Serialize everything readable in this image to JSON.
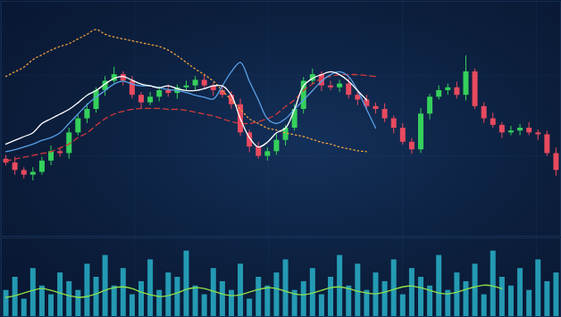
{
  "chart_data": [
    {
      "type": "candlestick",
      "x": [
        0,
        1,
        2,
        3,
        4,
        5,
        6,
        7,
        8,
        9,
        10,
        11,
        12,
        13,
        14,
        15,
        16,
        17,
        18,
        19,
        20,
        21,
        22,
        23,
        24,
        25,
        26,
        27,
        28,
        29,
        30,
        31,
        32,
        33,
        34,
        35,
        36,
        37,
        38,
        39,
        40,
        41,
        42,
        43,
        44,
        45,
        46,
        47,
        48,
        49,
        50,
        51,
        52,
        53,
        54,
        55,
        56,
        57,
        58,
        59,
        60,
        61
      ],
      "open": [
        172,
        168,
        160,
        155,
        158,
        170,
        180,
        178,
        200,
        215,
        225,
        245,
        255,
        262,
        255,
        240,
        232,
        238,
        245,
        242,
        248,
        250,
        256,
        250,
        245,
        240,
        230,
        200,
        185,
        175,
        180,
        192,
        205,
        225,
        255,
        262,
        250,
        248,
        252,
        240,
        235,
        228,
        225,
        215,
        205,
        190,
        182,
        220,
        238,
        245,
        248,
        240,
        265,
        228,
        215,
        208,
        200,
        202,
        205,
        200,
        198,
        178
      ],
      "high": [
        176,
        174,
        163,
        163,
        174,
        186,
        183,
        205,
        219,
        231,
        248,
        260,
        270,
        265,
        260,
        243,
        243,
        249,
        251,
        251,
        255,
        260,
        262,
        253,
        250,
        244,
        236,
        203,
        190,
        184,
        198,
        208,
        230,
        259,
        268,
        265,
        255,
        256,
        258,
        243,
        240,
        232,
        231,
        218,
        210,
        194,
        226,
        241,
        250,
        252,
        254,
        282,
        268,
        232,
        221,
        211,
        207,
        209,
        211,
        203,
        202,
        184
      ],
      "low": [
        165,
        155,
        151,
        149,
        155,
        165,
        174,
        172,
        197,
        210,
        221,
        239,
        252,
        250,
        236,
        226,
        229,
        233,
        238,
        236,
        245,
        245,
        246,
        239,
        237,
        225,
        196,
        179,
        172,
        170,
        176,
        186,
        202,
        220,
        251,
        244,
        245,
        243,
        236,
        229,
        225,
        220,
        211,
        199,
        187,
        177,
        178,
        214,
        235,
        240,
        236,
        234,
        225,
        210,
        205,
        194,
        197,
        197,
        197,
        192,
        175,
        154
      ],
      "close": [
        168,
        160,
        155,
        158,
        170,
        180,
        178,
        200,
        215,
        225,
        245,
        255,
        262,
        255,
        240,
        232,
        238,
        245,
        242,
        248,
        250,
        256,
        250,
        245,
        240,
        230,
        200,
        185,
        175,
        180,
        192,
        205,
        225,
        255,
        262,
        250,
        248,
        252,
        240,
        235,
        228,
        225,
        215,
        205,
        190,
        182,
        220,
        238,
        245,
        248,
        240,
        265,
        228,
        215,
        208,
        200,
        202,
        205,
        200,
        198,
        178,
        160
      ],
      "colors": [
        "#e84a5f",
        "#e84a5f",
        "#e84a5f",
        "#35d05b",
        "#35d05b",
        "#35d05b",
        "#e84a5f",
        "#35d05b",
        "#35d05b",
        "#35d05b",
        "#35d05b",
        "#35d05b",
        "#35d05b",
        "#e84a5f",
        "#e84a5f",
        "#e84a5f",
        "#35d05b",
        "#35d05b",
        "#e84a5f",
        "#35d05b",
        "#35d05b",
        "#35d05b",
        "#e84a5f",
        "#e84a5f",
        "#e84a5f",
        "#e84a5f",
        "#e84a5f",
        "#e84a5f",
        "#e84a5f",
        "#35d05b",
        "#35d05b",
        "#35d05b",
        "#35d05b",
        "#35d05b",
        "#35d05b",
        "#e84a5f",
        "#e84a5f",
        "#35d05b",
        "#e84a5f",
        "#e84a5f",
        "#e84a5f",
        "#e84a5f",
        "#e84a5f",
        "#e84a5f",
        "#e84a5f",
        "#e84a5f",
        "#35d05b",
        "#35d05b",
        "#35d05b",
        "#35d05b",
        "#e84a5f",
        "#35d05b",
        "#e84a5f",
        "#e84a5f",
        "#e84a5f",
        "#e84a5f",
        "#35d05b",
        "#35d05b",
        "#e84a5f",
        "#e84a5f",
        "#e84a5f",
        "#e84a5f"
      ],
      "series": [
        {
          "color": "#f0a040",
          "line_style": "dotted",
          "values": [
            260,
            265,
            270,
            278,
            283,
            288,
            292,
            295,
            300,
            305,
            310,
            305,
            302,
            300,
            298,
            296,
            294,
            292,
            288,
            282,
            275,
            268,
            262,
            255,
            245,
            235,
            225,
            215,
            210,
            205,
            203,
            200,
            198,
            196,
            193,
            190,
            188,
            185,
            183,
            181,
            180,
            null,
            null,
            null,
            null,
            null,
            null,
            null,
            null,
            null,
            null,
            null,
            null,
            null,
            null,
            null,
            null,
            null,
            null,
            null,
            null,
            null
          ]
        },
        {
          "color": "#d23a3a",
          "line_style": "dashed",
          "values": [
            170,
            172,
            174,
            176,
            178,
            180,
            184,
            188,
            195,
            200,
            208,
            215,
            220,
            223,
            225,
            226,
            226,
            226,
            225,
            225,
            224,
            222,
            220,
            218,
            215,
            212,
            210,
            210,
            212,
            215,
            220,
            228,
            235,
            245,
            252,
            258,
            260,
            262,
            262,
            262,
            261,
            260,
            null,
            null,
            null,
            null,
            null,
            null,
            null,
            null,
            null,
            null,
            null,
            null,
            null,
            null,
            null,
            null,
            null,
            null,
            null,
            null
          ]
        },
        {
          "color": "#5aa0e6",
          "line_style": "solid",
          "values": [
            180,
            182,
            185,
            188,
            192,
            195,
            200,
            210,
            220,
            230,
            238,
            245,
            252,
            255,
            252,
            250,
            250,
            248,
            246,
            245,
            243,
            240,
            238,
            236,
            250,
            265,
            275,
            255,
            235,
            215,
            210,
            215,
            225,
            235,
            245,
            255,
            262,
            265,
            260,
            245,
            225,
            205,
            null,
            null,
            null,
            null,
            null,
            null,
            null,
            null,
            null,
            null,
            null,
            null,
            null,
            null,
            null,
            null,
            null,
            null,
            null,
            null
          ]
        },
        {
          "color": "#ffffff",
          "line_style": "solid",
          "values": [
            188,
            192,
            196,
            200,
            210,
            215,
            220,
            225,
            232,
            240,
            245,
            252,
            258,
            260,
            256,
            252,
            250,
            248,
            250,
            247,
            245,
            245,
            247,
            250,
            250,
            240,
            215,
            195,
            185,
            190,
            200,
            205,
            225,
            250,
            258,
            262,
            265,
            262,
            255,
            245,
            235,
            null,
            null,
            null,
            null,
            null,
            null,
            null,
            null,
            null,
            null,
            null,
            null,
            null,
            null,
            null,
            null,
            null,
            null,
            null,
            null,
            null
          ]
        }
      ],
      "xlim": [
        -0.5,
        61.5
      ],
      "ylim": [
        90,
        340
      ],
      "tick_labels": false
    },
    {
      "type": "bar",
      "x": [
        0,
        1,
        2,
        3,
        4,
        5,
        6,
        7,
        8,
        9,
        10,
        11,
        12,
        13,
        14,
        15,
        16,
        17,
        18,
        19,
        20,
        21,
        22,
        23,
        24,
        25,
        26,
        27,
        28,
        29,
        30,
        31,
        32,
        33,
        34,
        35,
        36,
        37,
        38,
        39,
        40,
        41,
        42,
        43,
        44,
        45,
        46,
        47,
        48,
        49,
        50,
        51,
        52,
        53,
        54,
        55,
        56,
        57,
        58,
        59,
        60,
        61
      ],
      "values": [
        30,
        45,
        20,
        55,
        35,
        25,
        50,
        40,
        30,
        60,
        45,
        70,
        35,
        55,
        25,
        40,
        65,
        30,
        50,
        45,
        75,
        35,
        25,
        55,
        40,
        30,
        60,
        20,
        45,
        35,
        50,
        65,
        30,
        40,
        55,
        25,
        45,
        70,
        35,
        60,
        30,
        50,
        40,
        65,
        25,
        55,
        45,
        35,
        70,
        30,
        50,
        40,
        60,
        25,
        75,
        45,
        35,
        55,
        30,
        65,
        40,
        50
      ],
      "color": "#2ec4dc",
      "series": [
        {
          "type": "line",
          "color": "#8fe04a",
          "line_style": "solid",
          "values": [
            22,
            24,
            27,
            30,
            32,
            30,
            27,
            24,
            22,
            23,
            26,
            30,
            33,
            34,
            32,
            28,
            25,
            23,
            24,
            27,
            31,
            33,
            32,
            29,
            26,
            24,
            25,
            28,
            31,
            33,
            32,
            29,
            26,
            25,
            27,
            30,
            33,
            34,
            32,
            29,
            27,
            26,
            28,
            31,
            34,
            35,
            33,
            30,
            27,
            26,
            28,
            31,
            34,
            36,
            35,
            32,
            null,
            null,
            null,
            null,
            null,
            null
          ]
        }
      ],
      "xlim": [
        -0.5,
        61.5
      ],
      "ylim": [
        0,
        90
      ],
      "tick_labels": false
    }
  ]
}
